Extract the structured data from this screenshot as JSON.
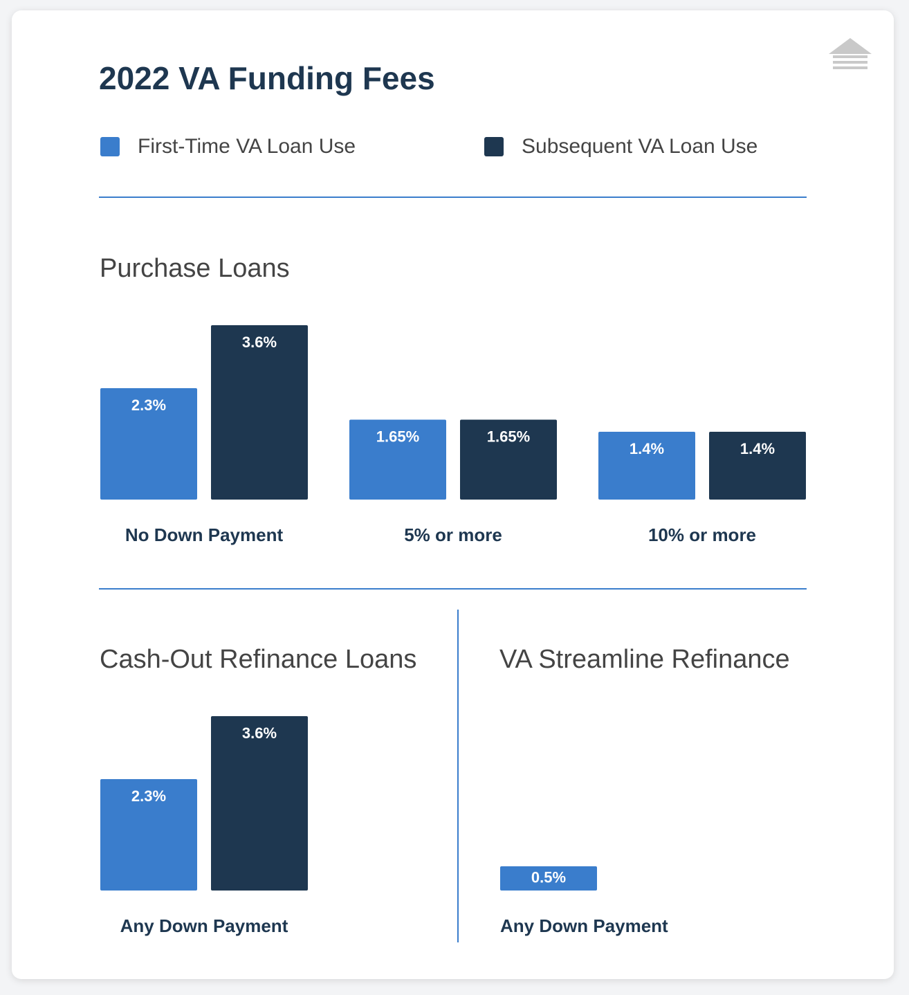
{
  "title": "2022 VA Funding Fees",
  "chart_data": [
    {
      "type": "bar",
      "title": "Purchase Loans",
      "categories": [
        "No Down Payment",
        "5% or more",
        "10% or more"
      ],
      "series": [
        {
          "name": "First-Time VA Loan Use",
          "color": "#3a7dcc",
          "values": [
            2.3,
            1.65,
            1.4
          ],
          "value_labels": [
            "2.3%",
            "1.65%",
            "1.4%"
          ]
        },
        {
          "name": "Subsequent VA Loan Use",
          "color": "#1e3750",
          "values": [
            3.6,
            1.65,
            1.4
          ],
          "value_labels": [
            "3.6%",
            "1.65%",
            "1.4%"
          ]
        }
      ]
    },
    {
      "type": "bar",
      "title": "Cash-Out Refinance Loans",
      "categories": [
        "Any Down Payment"
      ],
      "series": [
        {
          "color": "#3a7dcc",
          "values": [
            2.3
          ],
          "value_labels": [
            "2.3%"
          ]
        },
        {
          "color": "#1e3750",
          "values": [
            3.6
          ],
          "value_labels": [
            "3.6%"
          ]
        }
      ]
    },
    {
      "type": "bar",
      "title": "VA Streamline Refinance",
      "categories": [
        "Any Down Payment"
      ],
      "series": [
        {
          "color": "#3a7dcc",
          "values": [
            0.5
          ],
          "value_labels": [
            "0.5%"
          ]
        }
      ]
    }
  ]
}
